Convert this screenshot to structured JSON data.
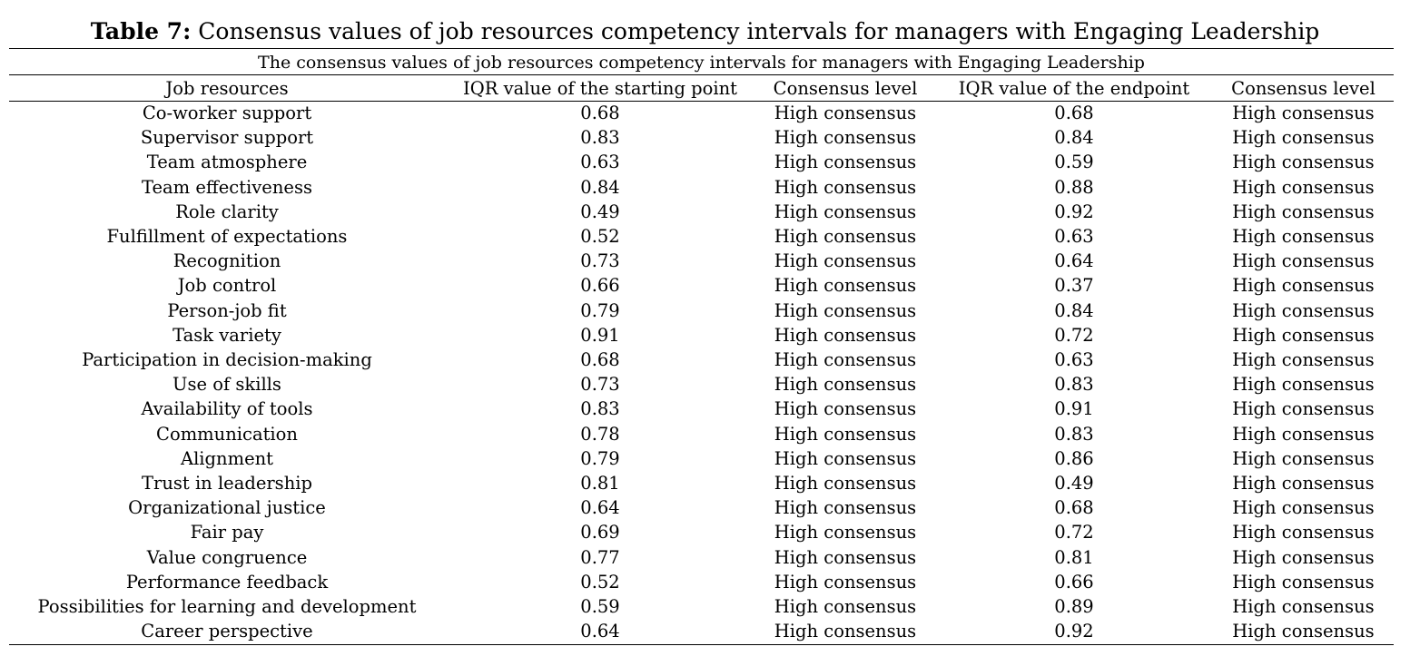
{
  "caption": {
    "label": "Table 7:",
    "text": "Consensus values of job resources competency intervals for managers with Engaging Leadership"
  },
  "subheader": "The consensus values of job resources competency intervals for managers with Engaging Leadership",
  "columns": [
    "Job resources",
    "IQR value of the starting point",
    "Consensus level",
    "IQR value of the endpoint",
    "Consensus level"
  ],
  "rows": [
    [
      "Co-worker support",
      "0.68",
      "High consensus",
      "0.68",
      "High consensus"
    ],
    [
      "Supervisor support",
      "0.83",
      "High consensus",
      "0.84",
      "High consensus"
    ],
    [
      "Team atmosphere",
      "0.63",
      "High consensus",
      "0.59",
      "High consensus"
    ],
    [
      "Team effectiveness",
      "0.84",
      "High consensus",
      "0.88",
      "High consensus"
    ],
    [
      "Role clarity",
      "0.49",
      "High consensus",
      "0.92",
      "High consensus"
    ],
    [
      "Fulfillment of expectations",
      "0.52",
      "High consensus",
      "0.63",
      "High consensus"
    ],
    [
      "Recognition",
      "0.73",
      "High consensus",
      "0.64",
      "High consensus"
    ],
    [
      "Job control",
      "0.66",
      "High consensus",
      "0.37",
      "High consensus"
    ],
    [
      "Person-job fit",
      "0.79",
      "High consensus",
      "0.84",
      "High consensus"
    ],
    [
      "Task variety",
      "0.91",
      "High consensus",
      "0.72",
      "High consensus"
    ],
    [
      "Participation in decision-making",
      "0.68",
      "High consensus",
      "0.63",
      "High consensus"
    ],
    [
      "Use of skills",
      "0.73",
      "High consensus",
      "0.83",
      "High consensus"
    ],
    [
      "Availability of tools",
      "0.83",
      "High consensus",
      "0.91",
      "High consensus"
    ],
    [
      "Communication",
      "0.78",
      "High consensus",
      "0.83",
      "High consensus"
    ],
    [
      "Alignment",
      "0.79",
      "High consensus",
      "0.86",
      "High consensus"
    ],
    [
      "Trust in leadership",
      "0.81",
      "High consensus",
      "0.49",
      "High consensus"
    ],
    [
      "Organizational justice",
      "0.64",
      "High consensus",
      "0.68",
      "High consensus"
    ],
    [
      "Fair pay",
      "0.69",
      "High consensus",
      "0.72",
      "High consensus"
    ],
    [
      "Value congruence",
      "0.77",
      "High consensus",
      "0.81",
      "High consensus"
    ],
    [
      "Performance feedback",
      "0.52",
      "High consensus",
      "0.66",
      "High consensus"
    ],
    [
      "Possibilities for learning and development",
      "0.59",
      "High consensus",
      "0.89",
      "High consensus"
    ],
    [
      "Career perspective",
      "0.64",
      "High consensus",
      "0.92",
      "High consensus"
    ]
  ]
}
